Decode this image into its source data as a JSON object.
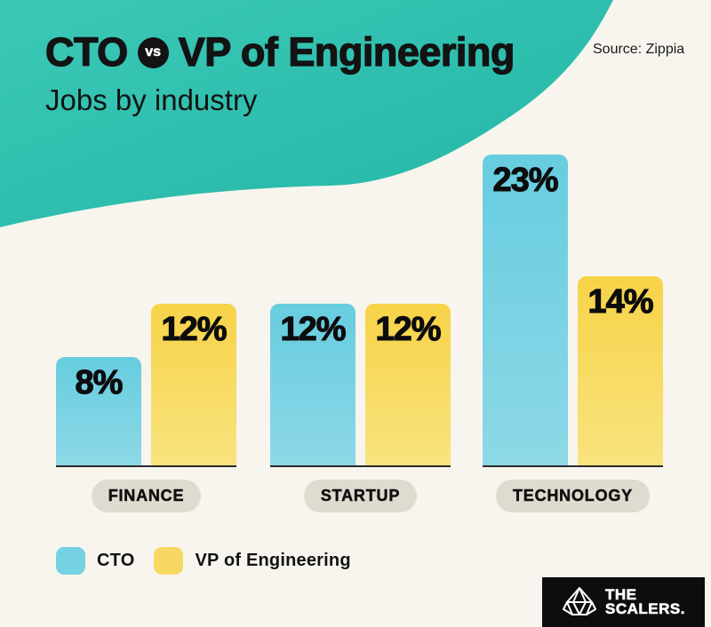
{
  "header": {
    "title_left": "CTO",
    "vs_badge": "vs",
    "title_right": "VP of Engineering",
    "subtitle": "Jobs by industry",
    "source": "Source: Zippia"
  },
  "chart_data": {
    "type": "bar",
    "title": "CTO vs VP of Engineering",
    "subtitle": "Jobs by industry",
    "unit": "%",
    "categories": [
      "FINANCE",
      "STARTUP",
      "TECHNOLOGY"
    ],
    "series": [
      {
        "name": "CTO",
        "color": "#6FCFE0",
        "values": [
          8,
          12,
          23
        ],
        "labels": [
          "8%",
          "12%",
          "23%"
        ]
      },
      {
        "name": "VP of Engineering",
        "color": "#F7D54B",
        "values": [
          12,
          12,
          14
        ],
        "labels": [
          "12%",
          "12%",
          "14%"
        ]
      }
    ],
    "ylim": [
      0,
      25
    ],
    "grid": false,
    "legend_position": "bottom-left",
    "source": "Zippia"
  },
  "legend": {
    "items": [
      {
        "label": "CTO",
        "color": "#6FCFE0"
      },
      {
        "label": "VP of Engineering",
        "color": "#F7D54B"
      }
    ]
  },
  "logo": {
    "word1": "THE",
    "word2": "SCALERS."
  },
  "colors": {
    "header_teal": "#2EBFAF",
    "background": "#F7F5EE",
    "cto_bar": "#6FCFE0",
    "vp_bar": "#F7D54B",
    "pill_background": "#DFDBD0",
    "baseline": "#2B2B2B",
    "text": "#131313",
    "logo_background": "#0D0D0D"
  }
}
